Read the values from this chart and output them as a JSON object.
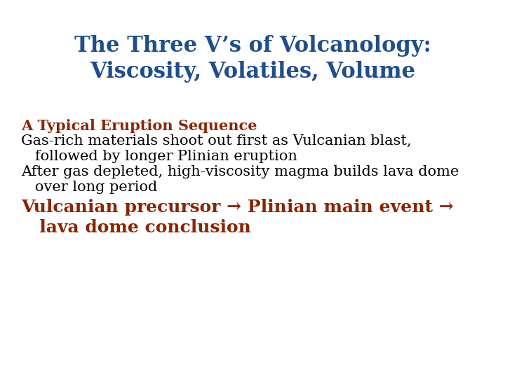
{
  "title_line1": "The Three V’s of Volcanology:",
  "title_line2": "Viscosity, Volatiles, Volume",
  "title_color": "#1F4E8C",
  "title_fontsize": 22,
  "body_fontsize": 15,
  "bold_line": "A Typical Eruption Sequence",
  "bold_color": "#8B2500",
  "body_color": "#000000",
  "body_lines": [
    "Gas-rich materials shoot out first as Vulcanian blast,",
    "   followed by longer Plinian eruption",
    "After gas depleted, high-viscosity magma builds lava dome",
    "   over long period"
  ],
  "sequence_line1": "Vulcanian precursor → Plinian main event →",
  "sequence_line2": "   lava dome conclusion",
  "sequence_color": "#8B2500",
  "sequence_fontsize": 18,
  "background_color": "#ffffff"
}
